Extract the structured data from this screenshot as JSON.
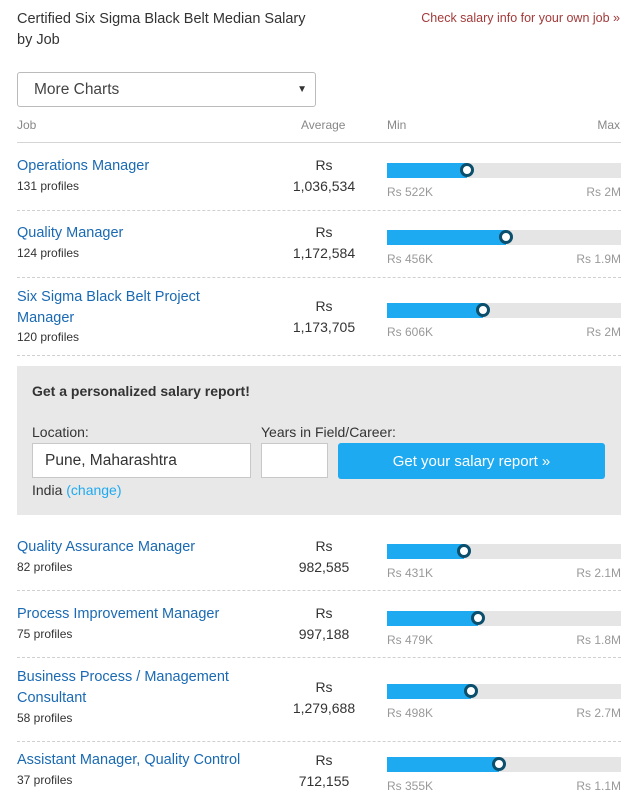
{
  "header": {
    "title": "Certified Six Sigma Black Belt Median Salary by Job",
    "own_link": "Check salary info for your own job »"
  },
  "dropdown": {
    "value": "More Charts"
  },
  "columns": {
    "job": "Job",
    "average": "Average",
    "min": "Min",
    "max": "Max"
  },
  "rows_top": [
    {
      "job": "Operations Manager",
      "profiles": "131 profiles",
      "currency": "Rs",
      "average": "1,036,534",
      "min": "Rs 522K",
      "max": "Rs 2M",
      "fill_fraction": 0.34
    },
    {
      "job": "Quality Manager",
      "profiles": "124 profiles",
      "currency": "Rs",
      "average": "1,172,584",
      "min": "Rs 456K",
      "max": "Rs 1.9M",
      "fill_fraction": 0.51
    },
    {
      "job": "Six Sigma Black Belt Project Manager",
      "profiles": "120 profiles",
      "currency": "Rs",
      "average": "1,173,705",
      "min": "Rs 606K",
      "max": "Rs 2M",
      "fill_fraction": 0.41
    }
  ],
  "report": {
    "title": "Get a personalized salary report!",
    "location_label": "Location:",
    "location_value": "Pune, Maharashtra",
    "years_label": "Years in Field/Career:",
    "years_value": "",
    "button_label": "Get your salary report »",
    "country": "India",
    "change_label": "(change)"
  },
  "rows_bottom": [
    {
      "job": "Quality Assurance Manager",
      "profiles": "82 profiles",
      "currency": "Rs",
      "average": "982,585",
      "min": "Rs 431K",
      "max": "Rs 2.1M",
      "fill_fraction": 0.33
    },
    {
      "job": "Process Improvement Manager",
      "profiles": "75 profiles",
      "currency": "Rs",
      "average": "997,188",
      "min": "Rs 479K",
      "max": "Rs 1.8M",
      "fill_fraction": 0.39
    },
    {
      "job": "Business Process / Management Consultant",
      "profiles": "58 profiles",
      "currency": "Rs",
      "average": "1,279,688",
      "min": "Rs 498K",
      "max": "Rs 2.7M",
      "fill_fraction": 0.36
    },
    {
      "job": "Assistant Manager, Quality Control",
      "profiles": "37 profiles",
      "currency": "Rs",
      "average": "712,155",
      "min": "Rs 355K",
      "max": "Rs 1.1M",
      "fill_fraction": 0.48
    }
  ],
  "colors": {
    "bar_fill": "#1eaaf1",
    "bar_track": "#e5e5e5",
    "link": "#1a6ab3",
    "own_link": "#a33a3a"
  }
}
